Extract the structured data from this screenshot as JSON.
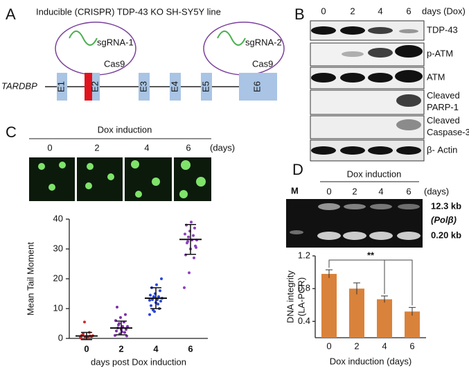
{
  "panel_a": {
    "letter": "A",
    "title": "Inducible (CRISPR) TDP-43 KO SH-SY5Y line",
    "guides": [
      {
        "name": "sgRNA-1",
        "enzyme": "Cas9"
      },
      {
        "name": "sgRNA-2",
        "enzyme": "Cas9"
      }
    ],
    "gene": "TARDBP",
    "exons": [
      "E1",
      "E2",
      "E3",
      "E4",
      "E5",
      "E6"
    ]
  },
  "panel_b": {
    "letter": "B",
    "days": [
      "0",
      "2",
      "4",
      "6"
    ],
    "unit": "days (Dox)",
    "blots": [
      [
        "TDP-43"
      ],
      [
        "p-ATM"
      ],
      [
        "ATM"
      ],
      [
        "Cleaved",
        "PARP-1"
      ],
      [
        "Cleaved",
        "Caspase-3"
      ],
      [
        "β- Actin"
      ]
    ]
  },
  "panel_c": {
    "letter": "C",
    "header": "Dox induction",
    "days": [
      "0",
      "2",
      "4",
      "6"
    ],
    "unit": "(days)"
  },
  "panel_d": {
    "letter": "D",
    "header": "Dox induction",
    "marker": "M",
    "days": [
      "0",
      "2",
      "4",
      "6"
    ],
    "unit": "(days)",
    "bands": [
      "12.3 kb",
      "(Polβ)",
      "0.20 kb"
    ]
  },
  "chart_data": [
    {
      "type": "scatter",
      "ylabel": "Mean Tail Moment",
      "xlabel": "days post Dox induction",
      "categories": [
        "0",
        "2",
        "4",
        "6"
      ],
      "point_colors": [
        "#d62828",
        "#7b2fa8",
        "#2b45d8",
        "#8e3fc0"
      ],
      "points": [
        [
          0.2,
          0.5,
          0.8,
          1.0,
          0.3,
          0.6,
          1.5,
          0.4,
          0.9,
          5.5,
          2.0,
          0.1
        ],
        [
          1,
          1.5,
          2,
          2.5,
          3,
          3,
          3.5,
          4,
          4,
          5,
          5.5,
          6,
          7,
          8,
          10.5,
          2.2,
          0.8,
          4.5
        ],
        [
          8,
          9,
          10,
          11,
          12,
          12.5,
          13,
          13,
          13.5,
          14,
          14,
          14.5,
          15,
          16,
          17,
          18,
          20,
          9.5,
          11.5,
          12.8
        ],
        [
          17,
          22,
          27,
          28,
          30,
          31,
          32,
          33,
          33,
          34,
          34.5,
          35,
          36,
          37,
          38,
          39,
          30.5,
          32.5
        ]
      ],
      "means": [
        0.8,
        3.5,
        13.5,
        33.2
      ],
      "errors": [
        1.2,
        2.3,
        3.5,
        5
      ],
      "ylim": [
        0,
        40
      ],
      "yticks": [
        0,
        10,
        20,
        30,
        40
      ]
    },
    {
      "type": "bar",
      "ylabel": [
        "DNA integrity",
        "(LA-PCR)"
      ],
      "xlabel": "Dox induction (days)",
      "categories": [
        "0",
        "2",
        "4",
        "6"
      ],
      "values": [
        0.98,
        0.8,
        0.67,
        0.52
      ],
      "errors": [
        0.05,
        0.07,
        0.04,
        0.05
      ],
      "color": "#d9823b",
      "ylim": [
        0.2,
        1.2
      ],
      "yticks": [
        0.4,
        0.8,
        1.2
      ],
      "annotation": "**"
    }
  ]
}
